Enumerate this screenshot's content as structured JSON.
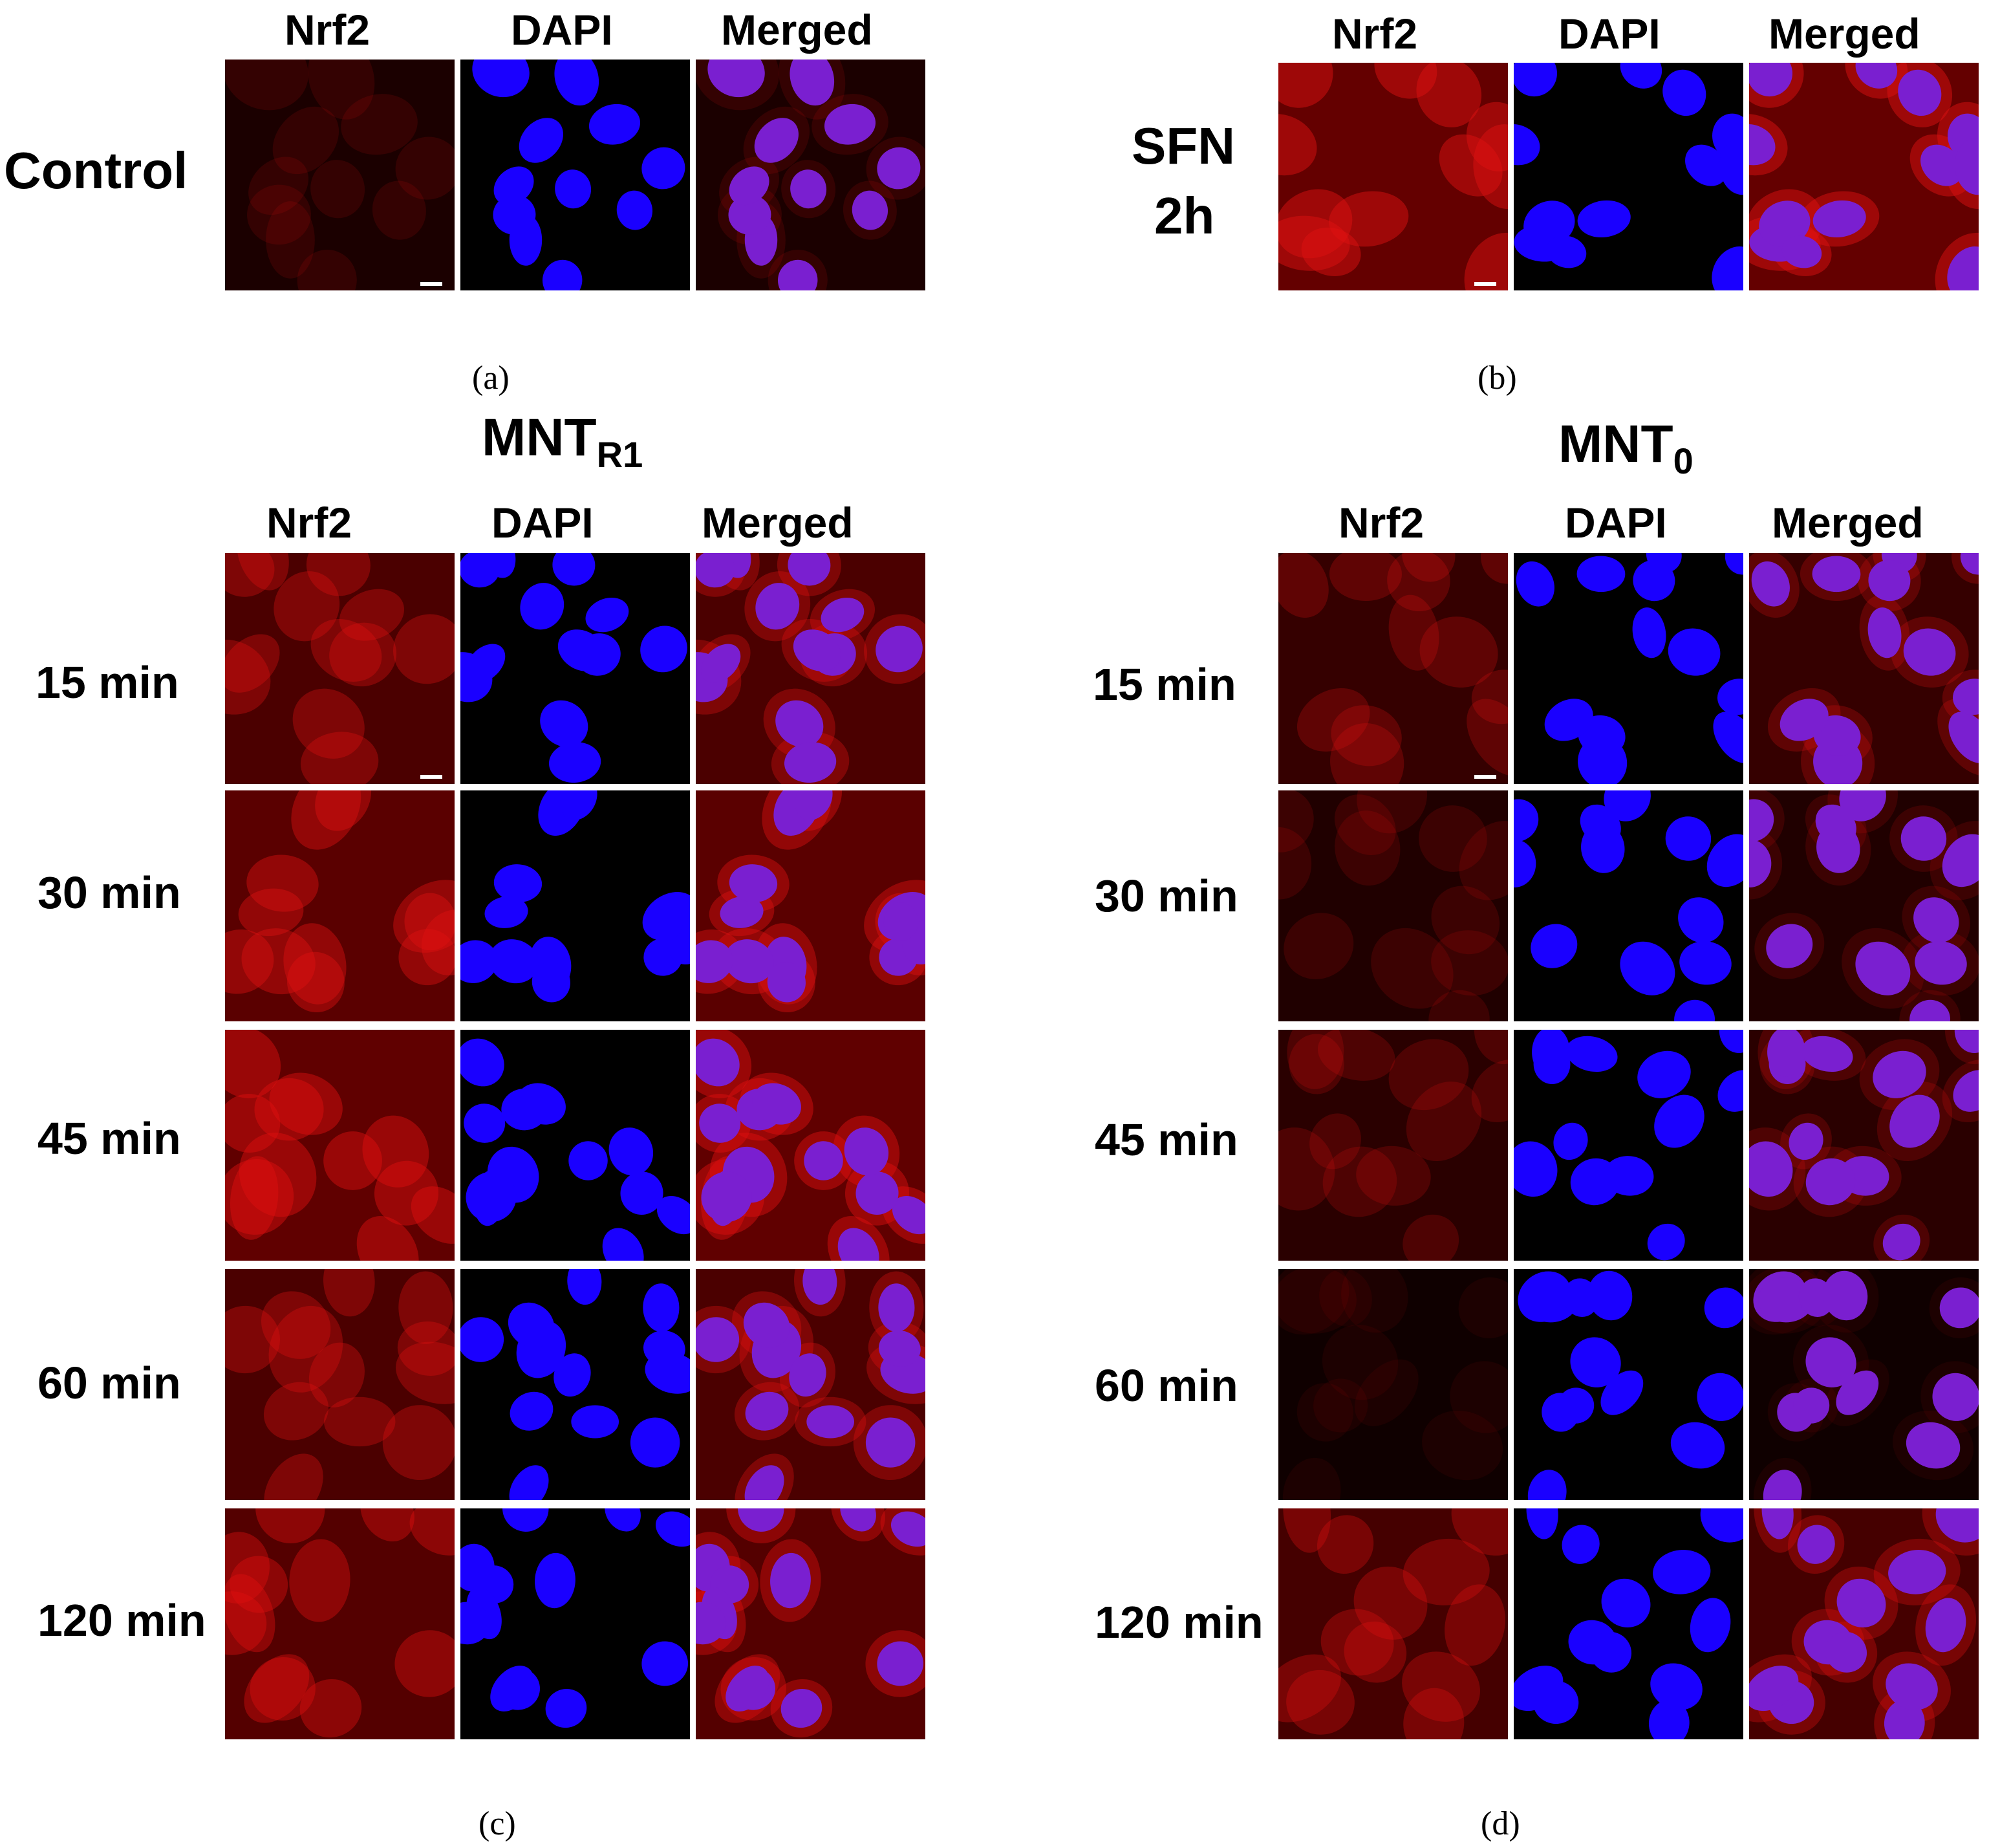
{
  "channels": [
    "Nrf2",
    "DAPI",
    "Merged"
  ],
  "colors": {
    "nrf2": "#c00000",
    "dapi": "#1a00ff",
    "merged": "#7a1fd0",
    "background": "#000000"
  },
  "panels": {
    "a": {
      "caption": "(a)",
      "row_label": "Control"
    },
    "b": {
      "caption": "(b)",
      "row_label_1": "SFN",
      "row_label_2": "2h"
    },
    "c": {
      "caption": "(c)",
      "title_main": "MNT",
      "title_sub": "R1",
      "rows": [
        "15 min",
        "30 min",
        "45 min",
        "60 min",
        "120 min"
      ]
    },
    "d": {
      "caption": "(d)",
      "title_main": "MNT",
      "title_sub": "0",
      "rows": [
        "15 min",
        "30 min",
        "45 min",
        "60 min",
        "120 min"
      ]
    }
  },
  "red_intensity": {
    "a": 0.25,
    "b": 0.95,
    "c": [
      0.7,
      0.85,
      0.9,
      0.7,
      0.8
    ],
    "d": [
      0.5,
      0.3,
      0.4,
      0.15,
      0.65
    ]
  }
}
